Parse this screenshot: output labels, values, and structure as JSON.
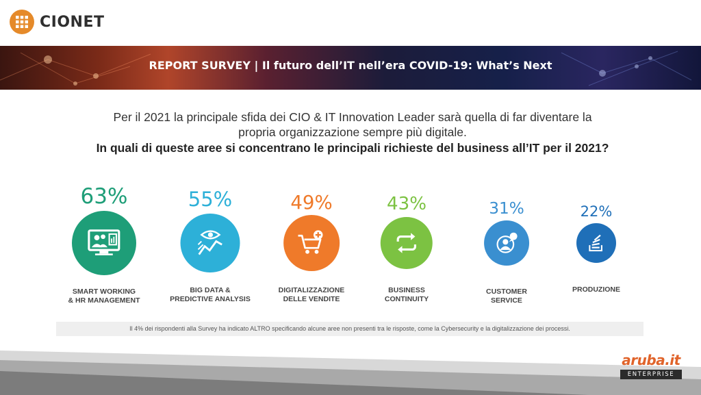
{
  "header": {
    "brand": "CIONET",
    "brand_color": "#e58a2a"
  },
  "banner": {
    "title": "REPORT SURVEY  | Il futuro dell’IT nell’era COVID-19: What’s Next"
  },
  "intro": {
    "line1": "Per il 2021 la principale sfida dei CIO & IT Innovation Leader sarà quella di far diventare la",
    "line2": "propria organizzazione sempre più digitale.",
    "question": "In quali di queste aree si concentrano le principali richieste del business all’IT per il 2021?"
  },
  "chart_data": {
    "type": "bubble-percent",
    "unit": "%",
    "items": [
      {
        "label_lines": [
          "SMART WORKING",
          "& HR MANAGEMENT"
        ],
        "value": 63,
        "display": "63%",
        "color": "#1e9e78",
        "icon": "remote-meeting-icon"
      },
      {
        "label_lines": [
          "BIG DATA &",
          "PREDICTIVE ANALYSIS"
        ],
        "value": 55,
        "display": "55%",
        "color": "#2db0d8",
        "icon": "eye-trend-icon"
      },
      {
        "label_lines": [
          "DIGITALIZZAZIONE",
          "DELLE VENDITE"
        ],
        "value": 49,
        "display": "49%",
        "color": "#ef7a2a",
        "icon": "shopping-cart-icon"
      },
      {
        "label_lines": [
          "BUSINESS",
          "CONTINUITY"
        ],
        "value": 43,
        "display": "43%",
        "color": "#7cc242",
        "icon": "cycle-arrows-icon"
      },
      {
        "label_lines": [
          "CUSTOMER",
          "SERVICE"
        ],
        "value": 31,
        "display": "31%",
        "color": "#3a8fd0",
        "icon": "customer-chat-icon"
      },
      {
        "label_lines": [
          "PRODUZIONE"
        ],
        "value": 22,
        "display": "22%",
        "color": "#1f6fb8",
        "icon": "stack-production-icon"
      }
    ]
  },
  "footnote": "Il 4% dei rispondenti alla Survey ha indicato ALTRO specificando alcune aree non presenti tra le risposte, come la Cybersecurity e la digitalizzazione dei processi.",
  "footer": {
    "brand_word": "aruba.it",
    "brand_sub": "ENTERPRISE",
    "brand_color": "#e0632a"
  }
}
